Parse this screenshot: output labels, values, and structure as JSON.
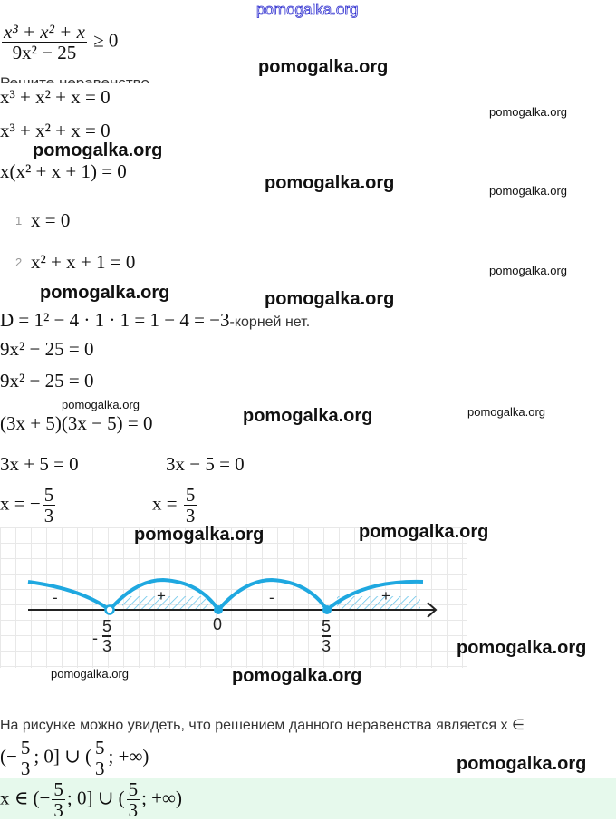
{
  "watermark": "pomogalka.org",
  "problem": {
    "numerator": "x³ + x² + x",
    "denominator": "9x² − 25",
    "relation": "≥ 0"
  },
  "task_label": "Решите неравенство",
  "steps": {
    "eq1": "x³ + x² + x = 0",
    "eq1b": "x³ + x² + x = 0",
    "factor": "x(x² + x + 1) = 0",
    "case1_num": "1",
    "case1": "x = 0",
    "case2_num": "2",
    "case2": "x² + x + 1 = 0",
    "discriminant": "D = 1² − 4 · 1 · 1 = 1 − 4 = −3",
    "no_roots": "-корней нет.",
    "eq2": "9x² − 25 = 0",
    "eq2b": "9x² − 25 = 0",
    "factor2": "(3x + 5)(3x − 5) = 0",
    "lin1": "3x + 5 = 0",
    "lin2": "3x − 5 = 0",
    "root1_lhs": "x = −",
    "root2_lhs": "x =",
    "root_num": "5",
    "root_den": "3"
  },
  "diagram": {
    "signs": [
      "-",
      "+",
      "-",
      "+"
    ],
    "points": [
      "-",
      "5",
      "3",
      "0",
      "5",
      "3"
    ],
    "curve_color": "#1fa8e0"
  },
  "conclusion": "На рисунке можно увидеть, что решением данного неравенства является x ∈",
  "answer": {
    "open": "(−",
    "mid": "; 0] ∪ (",
    "end": "; +∞)",
    "prefix": "x ∈ (−",
    "num": "5",
    "den": "3"
  },
  "answer_bg": "#e6f9ec"
}
